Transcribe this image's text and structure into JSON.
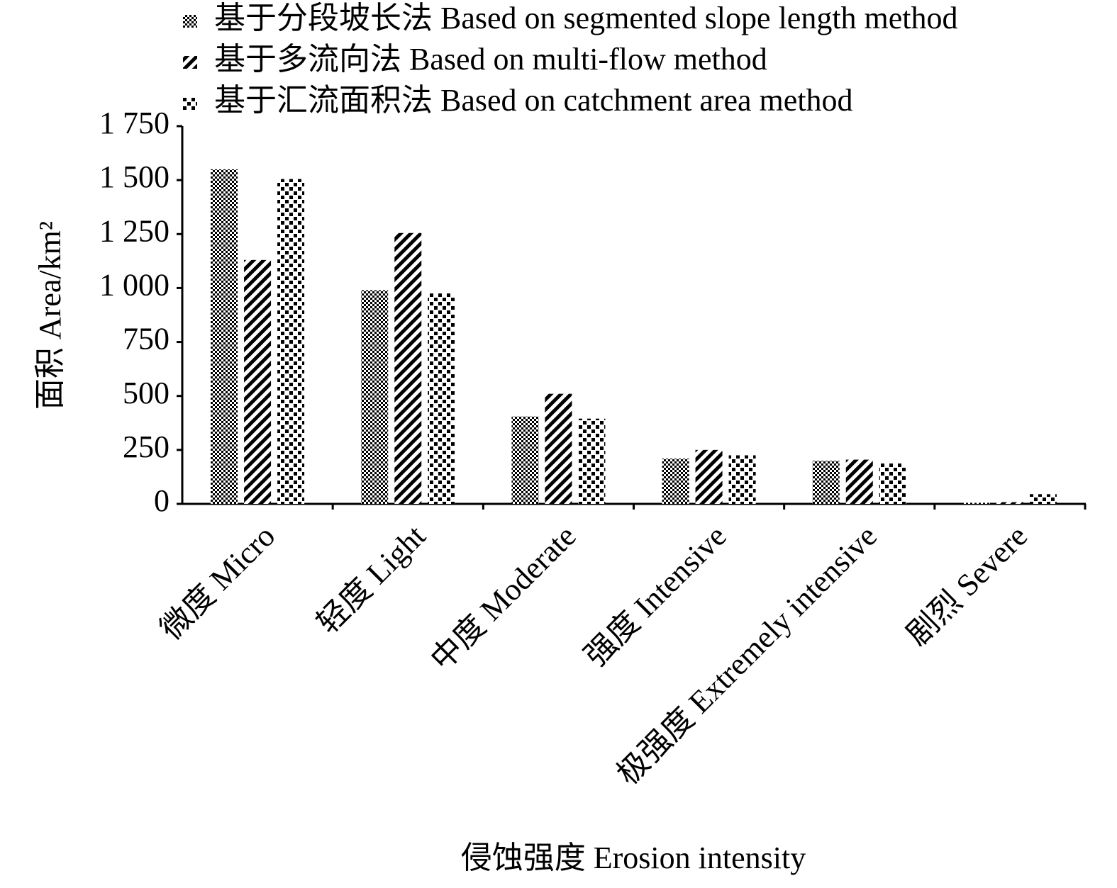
{
  "chart_data": {
    "type": "bar",
    "y_label": "面积 Area/km²",
    "x_label": "侵蚀强度 Erosion intensity",
    "categories": [
      "微度 Micro",
      "轻度 Light",
      "中度 Moderate",
      "强度 Intensive",
      "极强度 Extremely intensive",
      "剧烈 Severe"
    ],
    "series": [
      {
        "name": "基于分段坡长法 Based on segmented slope length method",
        "color": "#000000",
        "pattern": "checker",
        "values": [
          1550,
          990,
          405,
          210,
          200,
          5
        ]
      },
      {
        "name": "基于多流向法 Based on multi-flow method",
        "color": "#000000",
        "pattern": "diagonal",
        "values": [
          1130,
          1255,
          510,
          250,
          205,
          8
        ]
      },
      {
        "name": "基于汇流面积法 Based on catchment area method",
        "color": "#000000",
        "pattern": "dots",
        "values": [
          1505,
          975,
          395,
          225,
          190,
          45
        ]
      }
    ],
    "ylim": [
      0,
      1750
    ],
    "yticks": [
      0,
      250,
      500,
      750,
      {
        "value": 1000,
        "label": "1 000"
      },
      {
        "value": 1250,
        "label": "1 250"
      },
      {
        "value": 1500,
        "label": "1 500"
      },
      {
        "value": 1750,
        "label": "1 750"
      }
    ],
    "grid": false,
    "legend": "top-left"
  }
}
